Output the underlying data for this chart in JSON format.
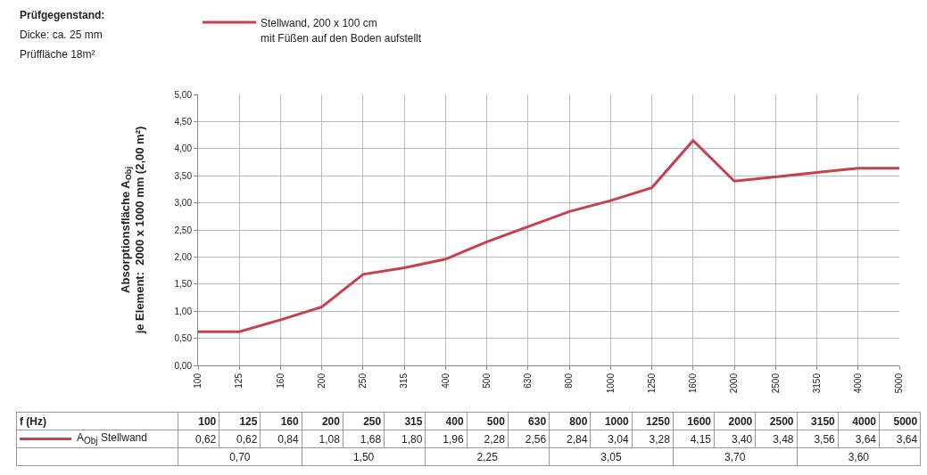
{
  "chart_data": {
    "type": "line",
    "title": "Prüfgegenstand:",
    "subtitle": "Dicke: ca. 25 mm\nPrüffläche 18m²",
    "ylabel": "Absorptionsfläche A$_{Obj}$\nje Element:  2000 x 1000 mm (2,00 m²)",
    "categories": [
      "100",
      "125",
      "160",
      "200",
      "250",
      "315",
      "400",
      "500",
      "630",
      "800",
      "1000",
      "1250",
      "1600",
      "2000",
      "2500",
      "3150",
      "4000",
      "5000"
    ],
    "series": [
      {
        "name": "Stellwand, 200 x 100 cm",
        "color": "#c8404c",
        "values": [
          0.62,
          0.62,
          0.84,
          1.08,
          1.68,
          1.8,
          1.96,
          2.28,
          2.56,
          2.84,
          3.04,
          3.28,
          4.15,
          3.4,
          3.48,
          3.56,
          3.64,
          3.64
        ],
        "value_labels": [
          "0,62",
          "0,62",
          "0,84",
          "1,08",
          "1,68",
          "1,80",
          "1,96",
          "2,28",
          "2,56",
          "2,84",
          "3,04",
          "3,28",
          "4,15",
          "3,40",
          "3,48",
          "3,56",
          "3,64",
          "3,64"
        ]
      }
    ],
    "ylim": [
      0,
      5
    ],
    "yticks": [
      {
        "value": 0,
        "label": "0,00"
      },
      {
        "value": 0.5,
        "label": "0,50"
      },
      {
        "value": 1,
        "label": "1,00"
      },
      {
        "value": 1.5,
        "label": "1,50"
      },
      {
        "value": 2,
        "label": "2,00"
      },
      {
        "value": 2.5,
        "label": "2,50"
      },
      {
        "value": 3,
        "label": "3,00"
      },
      {
        "value": 3.5,
        "label": "3,50"
      },
      {
        "value": 4,
        "label": "4,00"
      },
      {
        "value": 4.5,
        "label": "4,50"
      },
      {
        "value": 5,
        "label": "5,00"
      }
    ],
    "grid": true,
    "legend": "top",
    "line_style": "solid",
    "marker": "none",
    "annotations": [
      "mit Füßen auf den Boden aufstellt",
      "A$_{Obj}$ Stellwand",
      "f (Hz)",
      "0,70",
      "1,50",
      "2,25",
      "3,05",
      "3,70",
      "3,60"
    ]
  }
}
